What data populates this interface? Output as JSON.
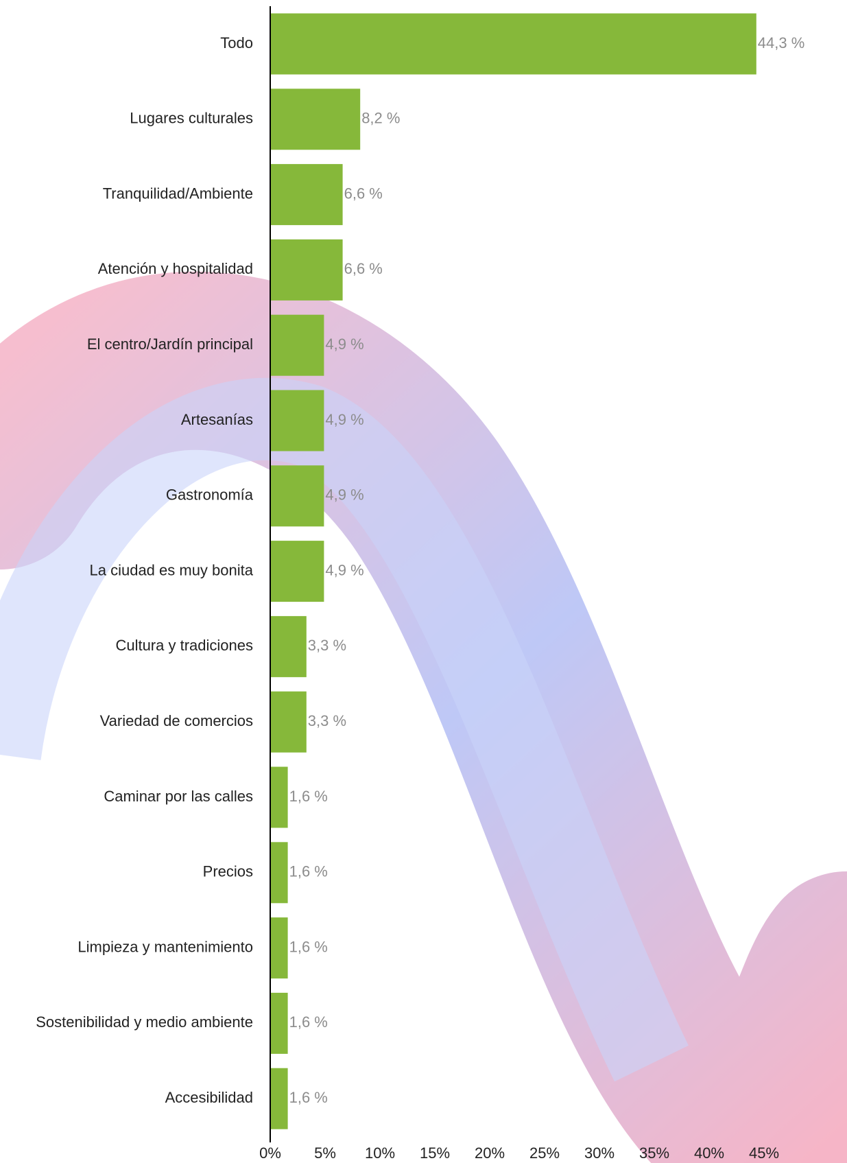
{
  "chart_data": {
    "type": "bar",
    "orientation": "horizontal",
    "categories": [
      "Todo",
      "Lugares culturales",
      "Tranquilidad/Ambiente",
      "Atención y hospitalidad",
      "El centro/Jardín principal",
      "Artesanías",
      "Gastronomía",
      "La ciudad es muy bonita",
      "Cultura y tradiciones",
      "Variedad de comercios",
      "Caminar por las calles",
      "Precios",
      "Limpieza y mantenimiento",
      "Sostenibilidad y medio ambiente",
      "Accesibilidad"
    ],
    "values": [
      44.3,
      8.2,
      6.6,
      6.6,
      4.9,
      4.9,
      4.9,
      4.9,
      3.3,
      3.3,
      1.6,
      1.6,
      1.6,
      1.6,
      1.6
    ],
    "value_labels": [
      "44,3 %",
      "8,2 %",
      "6,6 %",
      "6,6 %",
      "4,9 %",
      "4,9 %",
      "4,9 %",
      "4,9 %",
      "3,3 %",
      "3,3 %",
      "1,6 %",
      "1,6 %",
      "1,6 %",
      "1,6 %",
      "1,6 %"
    ],
    "color": "#86b83a",
    "xlim": [
      0,
      45
    ],
    "xticks": [
      {
        "value": 0,
        "label": "0%"
      },
      {
        "value": 5,
        "label": "5%"
      },
      {
        "value": 10,
        "label": "10%"
      },
      {
        "value": 15,
        "label": "15%"
      },
      {
        "value": 20,
        "label": "20%"
      },
      {
        "value": 25,
        "label": "25%"
      },
      {
        "value": 30,
        "label": "30%"
      },
      {
        "value": 35,
        "label": "35%"
      },
      {
        "value": 40,
        "label": "40%"
      },
      {
        "value": 45,
        "label": "45%"
      }
    ],
    "grid": false
  }
}
